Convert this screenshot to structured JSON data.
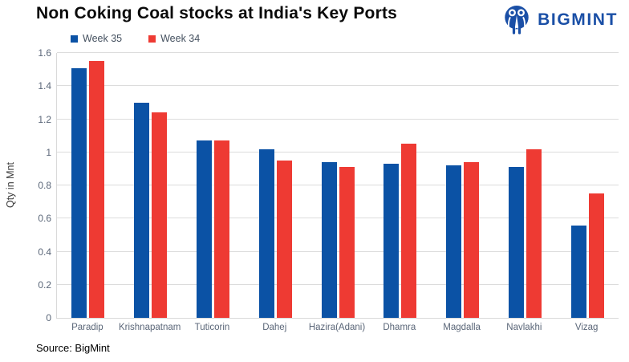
{
  "header": {
    "title": "Non Coking Coal stocks at India's Key Ports",
    "brand": "BIGMINT"
  },
  "footer": {
    "source": "Source: BigMint"
  },
  "icons": {
    "logo_icon": "bigmint-two-people-circle"
  },
  "colors": {
    "series_week35": "#0B52A5",
    "series_week34": "#EE3A33",
    "logo_blue": "#1a4fa6",
    "gridline": "#dcdcdc",
    "axis_text": "#5a6678"
  },
  "chart_data": {
    "type": "bar",
    "title": "Non Coking Coal stocks at India's Key Ports",
    "categories": [
      "Paradip",
      "Krishnapatnam",
      "Tuticorin",
      "Dahej",
      "Hazira(Adani)",
      "Dhamra",
      "Magdalla",
      "Navlakhi",
      "Vizag"
    ],
    "series": [
      {
        "name": "Week 35",
        "color": "#0B52A5",
        "values": [
          1.51,
          1.3,
          1.07,
          1.02,
          0.94,
          0.93,
          0.92,
          0.91,
          0.56
        ]
      },
      {
        "name": "Week 34",
        "color": "#EE3A33",
        "values": [
          1.55,
          1.24,
          1.07,
          0.95,
          0.91,
          1.05,
          0.94,
          1.02,
          0.75
        ]
      }
    ],
    "xlabel": "",
    "ylabel": "Qty in Mnt",
    "ylim": [
      0,
      1.6
    ],
    "yticks": [
      0,
      0.2,
      0.4,
      0.6,
      0.8,
      1,
      1.2,
      1.4,
      1.6
    ],
    "grid": true,
    "legend_position": "top-left"
  }
}
